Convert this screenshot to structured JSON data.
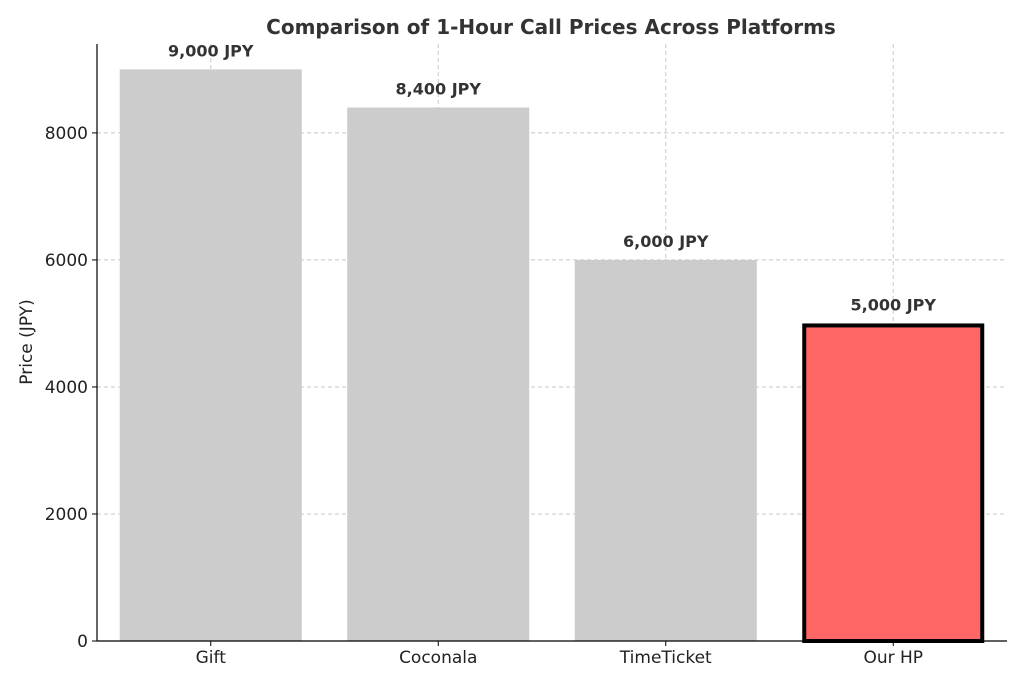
{
  "chart_data": {
    "type": "bar",
    "title": "Comparison of 1-Hour Call Prices Across Platforms",
    "xlabel": "",
    "ylabel": "Price (JPY)",
    "categories": [
      "Gift",
      "Coconala",
      "TimeTicket",
      "Our HP"
    ],
    "values": [
      9000,
      8400,
      6000,
      5000
    ],
    "data_labels": [
      "9,000 JPY",
      "8,400 JPY",
      "6,000 JPY",
      "5,000 JPY"
    ],
    "ylim": [
      0,
      9400
    ],
    "yticks": [
      0,
      2000,
      4000,
      6000,
      8000
    ],
    "ytick_labels": [
      "0",
      "2000",
      "4000",
      "6000",
      "8000"
    ],
    "grid": true,
    "legend": null,
    "colors": {
      "default_bar": "#cccccc",
      "highlight_bar": "#ff6666",
      "highlight_edge": "#000000"
    },
    "highlight_index": 3
  }
}
